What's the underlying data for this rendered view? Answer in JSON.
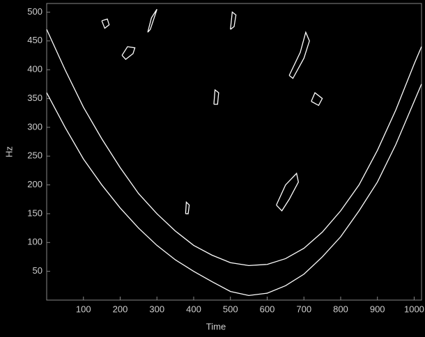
{
  "chart_data": {
    "type": "line",
    "xlabel": "Time",
    "ylabel": "Hz",
    "xlim": [
      0,
      1020
    ],
    "ylim": [
      0,
      515
    ],
    "xticks": [
      100,
      200,
      300,
      400,
      500,
      600,
      700,
      800,
      900,
      1000
    ],
    "yticks": [
      50,
      100,
      150,
      200,
      250,
      300,
      350,
      400,
      450,
      500
    ],
    "series": [
      {
        "color": "#ffffff",
        "x": [
          0,
          50,
          100,
          150,
          200,
          250,
          300,
          350,
          400,
          450,
          500,
          550,
          600,
          650,
          700,
          750,
          800,
          850,
          900,
          950,
          1000,
          1020
        ],
        "values": [
          470,
          400,
          335,
          280,
          230,
          185,
          150,
          120,
          95,
          78,
          65,
          60,
          62,
          72,
          90,
          118,
          155,
          200,
          260,
          330,
          410,
          440
        ]
      },
      {
        "color": "#ffffff",
        "x": [
          0,
          50,
          100,
          150,
          200,
          250,
          300,
          350,
          400,
          450,
          500,
          550,
          600,
          650,
          700,
          750,
          800,
          850,
          900,
          950,
          1000,
          1020
        ],
        "values": [
          360,
          300,
          245,
          200,
          160,
          125,
          95,
          70,
          50,
          32,
          15,
          8,
          12,
          25,
          45,
          75,
          110,
          155,
          205,
          270,
          345,
          375
        ]
      },
      {
        "color": "#ffffff",
        "x": [
          150,
          165,
          170,
          158,
          150
        ],
        "values": [
          485,
          488,
          478,
          472,
          485
        ]
      },
      {
        "color": "#ffffff",
        "x": [
          205,
          220,
          240,
          235,
          215,
          205
        ],
        "values": [
          425,
          440,
          438,
          428,
          418,
          425
        ]
      },
      {
        "color": "#ffffff",
        "x": [
          275,
          285,
          300,
          295,
          282,
          275
        ],
        "values": [
          465,
          490,
          505,
          495,
          470,
          465
        ]
      },
      {
        "color": "#ffffff",
        "x": [
          500,
          505,
          515,
          510,
          500
        ],
        "values": [
          470,
          500,
          495,
          475,
          470
        ]
      },
      {
        "color": "#ffffff",
        "x": [
          455,
          458,
          468,
          465,
          455
        ],
        "values": [
          340,
          365,
          360,
          340,
          340
        ]
      },
      {
        "color": "#ffffff",
        "x": [
          625,
          650,
          680,
          685,
          660,
          640,
          625
        ],
        "values": [
          165,
          200,
          220,
          205,
          175,
          155,
          165
        ]
      },
      {
        "color": "#ffffff",
        "x": [
          660,
          690,
          705,
          715,
          700,
          670,
          660
        ],
        "values": [
          390,
          430,
          465,
          450,
          420,
          385,
          390
        ]
      },
      {
        "color": "#ffffff",
        "x": [
          720,
          730,
          750,
          740,
          720
        ],
        "values": [
          345,
          360,
          350,
          338,
          345
        ]
      },
      {
        "color": "#ffffff",
        "x": [
          378,
          380,
          388,
          385,
          378
        ],
        "values": [
          150,
          170,
          165,
          150,
          150
        ]
      }
    ]
  }
}
